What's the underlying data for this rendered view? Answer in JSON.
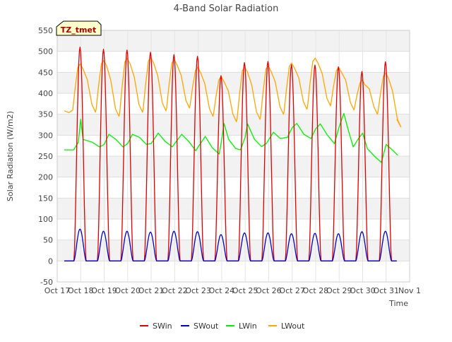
{
  "chart_data": {
    "type": "line",
    "title": "4-Band Solar Radiation",
    "xlabel": "Time",
    "ylabel": "Solar Radiation (W/m2)",
    "ylim": [
      -50,
      550
    ],
    "yticks": [
      -50,
      0,
      50,
      100,
      150,
      200,
      250,
      300,
      350,
      400,
      450,
      500,
      550
    ],
    "xlim": [
      17,
      32
    ],
    "xticks": [
      {
        "value": 17,
        "label": "Oct 17"
      },
      {
        "value": 18,
        "label": "Oct 18"
      },
      {
        "value": 19,
        "label": "Oct 19"
      },
      {
        "value": 20,
        "label": "Oct 20"
      },
      {
        "value": 21,
        "label": "Oct 21"
      },
      {
        "value": 22,
        "label": "Oct 22"
      },
      {
        "value": 23,
        "label": "Oct 23"
      },
      {
        "value": 24,
        "label": "Oct 24"
      },
      {
        "value": 25,
        "label": "Oct 25"
      },
      {
        "value": 26,
        "label": "Oct 26"
      },
      {
        "value": 27,
        "label": "Oct 27"
      },
      {
        "value": 28,
        "label": "Oct 28"
      },
      {
        "value": 29,
        "label": "Oct 29"
      },
      {
        "value": 30,
        "label": "Oct 30"
      },
      {
        "value": 31,
        "label": "Oct 31"
      },
      {
        "value": 32,
        "label": "Nov 1"
      }
    ],
    "grid": true,
    "annotation": "TZ_tmet",
    "legend_position": "bottom-center",
    "days": [
      18,
      19,
      20,
      21,
      22,
      23,
      24,
      25,
      26,
      27,
      28,
      29,
      30,
      31
    ],
    "series": [
      {
        "name": "SWin",
        "color": "#dd0000",
        "daily_peak": [
          510,
          505,
          503,
          498,
          492,
          488,
          442,
          473,
          476,
          468,
          467,
          463,
          452,
          475
        ],
        "night_value": 0
      },
      {
        "name": "SWout",
        "color": "#0000cc",
        "daily_peak": [
          76,
          71,
          71,
          69,
          71,
          70,
          63,
          67,
          67,
          65,
          66,
          65,
          70,
          71
        ],
        "night_value": 0
      },
      {
        "name": "LWin",
        "color": "#00ee00",
        "daily_values": [
          [
            17.3,
            265
          ],
          [
            17.7,
            265
          ],
          [
            17.9,
            283
          ],
          [
            18.0,
            338
          ],
          [
            18.1,
            290
          ],
          [
            18.5,
            283
          ],
          [
            18.8,
            272
          ],
          [
            19.0,
            278
          ],
          [
            19.2,
            302
          ],
          [
            19.5,
            290
          ],
          [
            19.8,
            272
          ],
          [
            20.0,
            280
          ],
          [
            20.2,
            302
          ],
          [
            20.5,
            295
          ],
          [
            20.8,
            278
          ],
          [
            21.0,
            280
          ],
          [
            21.3,
            305
          ],
          [
            21.6,
            285
          ],
          [
            21.9,
            272
          ],
          [
            22.0,
            280
          ],
          [
            22.3,
            302
          ],
          [
            22.6,
            285
          ],
          [
            22.9,
            263
          ],
          [
            23.0,
            272
          ],
          [
            23.3,
            297
          ],
          [
            23.6,
            270
          ],
          [
            23.9,
            255
          ],
          [
            24.0,
            290
          ],
          [
            24.1,
            328
          ],
          [
            24.3,
            290
          ],
          [
            24.6,
            268
          ],
          [
            24.8,
            265
          ],
          [
            25.0,
            295
          ],
          [
            25.1,
            327
          ],
          [
            25.4,
            290
          ],
          [
            25.7,
            273
          ],
          [
            25.9,
            280
          ],
          [
            26.2,
            307
          ],
          [
            26.5,
            292
          ],
          [
            26.8,
            295
          ],
          [
            27.0,
            318
          ],
          [
            27.2,
            328
          ],
          [
            27.5,
            302
          ],
          [
            27.8,
            292
          ],
          [
            28.0,
            315
          ],
          [
            28.2,
            327
          ],
          [
            28.5,
            300
          ],
          [
            28.8,
            280
          ],
          [
            29.0,
            320
          ],
          [
            29.2,
            352
          ],
          [
            29.4,
            310
          ],
          [
            29.6,
            272
          ],
          [
            29.8,
            290
          ],
          [
            30.0,
            305
          ],
          [
            30.2,
            268
          ],
          [
            30.5,
            250
          ],
          [
            30.8,
            235
          ],
          [
            31.0,
            278
          ],
          [
            31.2,
            268
          ],
          [
            31.5,
            252
          ]
        ]
      },
      {
        "name": "LWout",
        "color": "#ffa500",
        "daily_peak": [
          470,
          478,
          483,
          485,
          480,
          462,
          440,
          462,
          465,
          472,
          484,
          462,
          432,
          448
        ],
        "daily_trough": [
          355,
          345,
          355,
          358,
          365,
          345,
          332,
          338,
          350,
          362,
          370,
          360,
          350,
          320
        ],
        "start_value": 358,
        "end_value": 338
      }
    ]
  }
}
